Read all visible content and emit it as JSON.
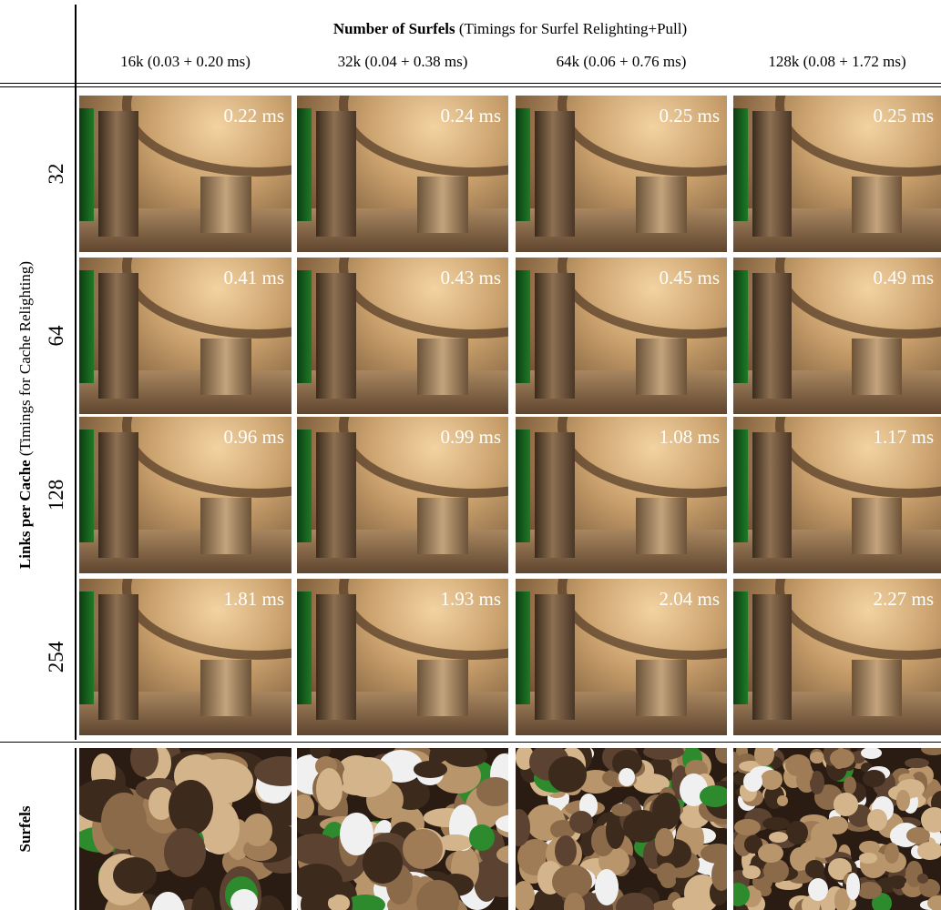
{
  "header": {
    "title_bold": "Number of Surfels",
    "title_rest": "(Timings for Surfel Relighting+Pull)",
    "columns": [
      "16k (0.03 + 0.20 ms)",
      "32k (0.04 + 0.38 ms)",
      "64k (0.06 + 0.76 ms)",
      "128k (0.08 + 1.72 ms)"
    ]
  },
  "row_header": {
    "title_bold": "Links per Cache",
    "title_rest": "(Timings for Cache Relighting)"
  },
  "rows": [
    {
      "label": "32",
      "timings": [
        "0.22 ms",
        "0.24 ms",
        "0.25 ms",
        "0.25 ms"
      ]
    },
    {
      "label": "64",
      "timings": [
        "0.41 ms",
        "0.43 ms",
        "0.45 ms",
        "0.49 ms"
      ]
    },
    {
      "label": "128",
      "timings": [
        "0.96 ms",
        "0.99 ms",
        "1.08 ms",
        "1.17 ms"
      ]
    },
    {
      "label": "254",
      "timings": [
        "1.81 ms",
        "1.93 ms",
        "2.04 ms",
        "2.27 ms"
      ]
    }
  ],
  "surfels_label": "Surfels"
}
